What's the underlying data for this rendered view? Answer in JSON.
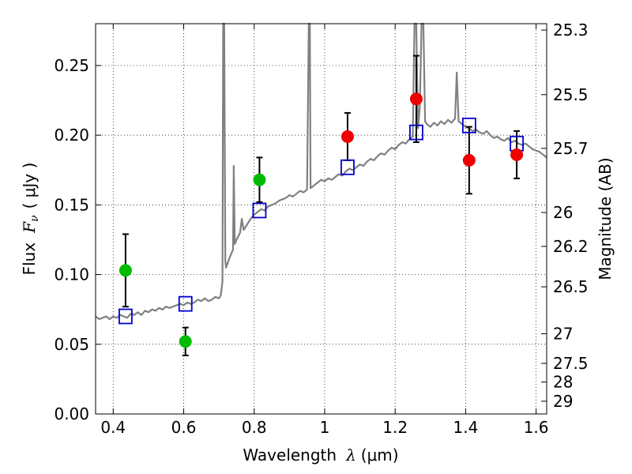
{
  "chart_data": {
    "type": "scatter",
    "xlabel": {
      "prefix": "Wavelength",
      "lambda": "λ",
      "unit": "(μm)"
    },
    "ylabel": {
      "prefix": "Flux",
      "symbol": "F",
      "subscript": "ν",
      "unit": "( μJy )"
    },
    "y2label": "Magnitude (AB)",
    "xlim": [
      0.35,
      1.63
    ],
    "ylim": [
      0.0,
      0.28
    ],
    "x_ticks": [
      {
        "value": 0.4,
        "label": "0.4"
      },
      {
        "value": 0.6,
        "label": "0.6"
      },
      {
        "value": 0.8,
        "label": "0.8"
      },
      {
        "value": 1.0,
        "label": "1"
      },
      {
        "value": 1.2,
        "label": "1.2"
      },
      {
        "value": 1.4,
        "label": "1.4"
      },
      {
        "value": 1.6,
        "label": "1.6"
      }
    ],
    "y_ticks": [
      {
        "value": 0.0,
        "label": "0.00"
      },
      {
        "value": 0.05,
        "label": "0.05"
      },
      {
        "value": 0.1,
        "label": "0.10"
      },
      {
        "value": 0.15,
        "label": "0.15"
      },
      {
        "value": 0.2,
        "label": "0.20"
      },
      {
        "value": 0.25,
        "label": "0.25"
      }
    ],
    "y2_ticks": [
      {
        "mag": 25.3,
        "label": "25.3"
      },
      {
        "mag": 25.5,
        "label": "25.5"
      },
      {
        "mag": 25.7,
        "label": "25.7"
      },
      {
        "mag": 26.0,
        "label": "26"
      },
      {
        "mag": 26.2,
        "label": "26.2"
      },
      {
        "mag": 26.5,
        "label": "26.5"
      },
      {
        "mag": 27.0,
        "label": "27"
      },
      {
        "mag": 27.5,
        "label": "27.5"
      },
      {
        "mag": 28.0,
        "label": "28"
      },
      {
        "mag": 29.0,
        "label": "29"
      }
    ],
    "grid": true,
    "series": [
      {
        "kind": "spectrum",
        "color": "#808080",
        "points": [
          [
            0.35,
            0.07
          ],
          [
            0.36,
            0.068
          ],
          [
            0.37,
            0.069
          ],
          [
            0.38,
            0.07
          ],
          [
            0.39,
            0.068
          ],
          [
            0.4,
            0.07
          ],
          [
            0.41,
            0.069
          ],
          [
            0.42,
            0.071
          ],
          [
            0.43,
            0.07
          ],
          [
            0.44,
            0.069
          ],
          [
            0.45,
            0.072
          ],
          [
            0.46,
            0.071
          ],
          [
            0.47,
            0.073
          ],
          [
            0.48,
            0.071
          ],
          [
            0.49,
            0.074
          ],
          [
            0.5,
            0.073
          ],
          [
            0.51,
            0.075
          ],
          [
            0.52,
            0.074
          ],
          [
            0.53,
            0.076
          ],
          [
            0.54,
            0.075
          ],
          [
            0.55,
            0.077
          ],
          [
            0.56,
            0.076
          ],
          [
            0.57,
            0.077
          ],
          [
            0.58,
            0.078
          ],
          [
            0.59,
            0.079
          ],
          [
            0.6,
            0.078
          ],
          [
            0.61,
            0.08
          ],
          [
            0.62,
            0.079
          ],
          [
            0.63,
            0.08
          ],
          [
            0.64,
            0.082
          ],
          [
            0.65,
            0.081
          ],
          [
            0.66,
            0.083
          ],
          [
            0.67,
            0.081
          ],
          [
            0.68,
            0.082
          ],
          [
            0.69,
            0.084
          ],
          [
            0.7,
            0.083
          ],
          [
            0.705,
            0.085
          ],
          [
            0.71,
            0.095
          ],
          [
            0.712,
            0.28
          ],
          [
            0.715,
            0.28
          ],
          [
            0.718,
            0.11
          ],
          [
            0.72,
            0.105
          ],
          [
            0.73,
            0.112
          ],
          [
            0.74,
            0.118
          ],
          [
            0.742,
            0.178
          ],
          [
            0.745,
            0.122
          ],
          [
            0.75,
            0.125
          ],
          [
            0.76,
            0.13
          ],
          [
            0.765,
            0.14
          ],
          [
            0.77,
            0.132
          ],
          [
            0.78,
            0.136
          ],
          [
            0.79,
            0.14
          ],
          [
            0.8,
            0.143
          ],
          [
            0.81,
            0.145
          ],
          [
            0.82,
            0.147
          ],
          [
            0.83,
            0.146
          ],
          [
            0.84,
            0.149
          ],
          [
            0.85,
            0.15
          ],
          [
            0.86,
            0.151
          ],
          [
            0.87,
            0.153
          ],
          [
            0.88,
            0.154
          ],
          [
            0.89,
            0.155
          ],
          [
            0.9,
            0.157
          ],
          [
            0.91,
            0.156
          ],
          [
            0.92,
            0.158
          ],
          [
            0.93,
            0.16
          ],
          [
            0.94,
            0.159
          ],
          [
            0.95,
            0.161
          ],
          [
            0.955,
            0.28
          ],
          [
            0.958,
            0.28
          ],
          [
            0.96,
            0.162
          ],
          [
            0.97,
            0.164
          ],
          [
            0.98,
            0.166
          ],
          [
            0.99,
            0.168
          ],
          [
            1.0,
            0.167
          ],
          [
            1.01,
            0.169
          ],
          [
            1.02,
            0.168
          ],
          [
            1.03,
            0.17
          ],
          [
            1.04,
            0.172
          ],
          [
            1.05,
            0.171
          ],
          [
            1.06,
            0.174
          ],
          [
            1.07,
            0.176
          ],
          [
            1.08,
            0.175
          ],
          [
            1.09,
            0.177
          ],
          [
            1.1,
            0.179
          ],
          [
            1.11,
            0.178
          ],
          [
            1.12,
            0.181
          ],
          [
            1.13,
            0.183
          ],
          [
            1.14,
            0.182
          ],
          [
            1.15,
            0.185
          ],
          [
            1.16,
            0.187
          ],
          [
            1.17,
            0.186
          ],
          [
            1.18,
            0.189
          ],
          [
            1.19,
            0.191
          ],
          [
            1.2,
            0.19
          ],
          [
            1.21,
            0.193
          ],
          [
            1.22,
            0.195
          ],
          [
            1.23,
            0.194
          ],
          [
            1.24,
            0.197
          ],
          [
            1.25,
            0.199
          ],
          [
            1.255,
            0.28
          ],
          [
            1.26,
            0.28
          ],
          [
            1.265,
            0.205
          ],
          [
            1.27,
            0.22
          ],
          [
            1.275,
            0.28
          ],
          [
            1.28,
            0.28
          ],
          [
            1.285,
            0.21
          ],
          [
            1.29,
            0.208
          ],
          [
            1.3,
            0.206
          ],
          [
            1.31,
            0.209
          ],
          [
            1.32,
            0.207
          ],
          [
            1.33,
            0.21
          ],
          [
            1.34,
            0.208
          ],
          [
            1.35,
            0.211
          ],
          [
            1.36,
            0.209
          ],
          [
            1.37,
            0.212
          ],
          [
            1.375,
            0.245
          ],
          [
            1.38,
            0.21
          ],
          [
            1.39,
            0.208
          ],
          [
            1.4,
            0.206
          ],
          [
            1.41,
            0.205
          ],
          [
            1.42,
            0.203
          ],
          [
            1.43,
            0.204
          ],
          [
            1.44,
            0.202
          ],
          [
            1.45,
            0.201
          ],
          [
            1.46,
            0.203
          ],
          [
            1.47,
            0.2
          ],
          [
            1.48,
            0.198
          ],
          [
            1.49,
            0.199
          ],
          [
            1.5,
            0.197
          ],
          [
            1.51,
            0.196
          ],
          [
            1.52,
            0.198
          ],
          [
            1.53,
            0.195
          ],
          [
            1.54,
            0.196
          ],
          [
            1.55,
            0.194
          ],
          [
            1.56,
            0.193
          ],
          [
            1.57,
            0.194
          ],
          [
            1.58,
            0.192
          ],
          [
            1.59,
            0.19
          ],
          [
            1.6,
            0.189
          ],
          [
            1.61,
            0.188
          ],
          [
            1.62,
            0.186
          ],
          [
            1.63,
            0.184
          ]
        ]
      },
      {
        "kind": "model-squares",
        "color": "#0000cc",
        "points": [
          {
            "x": 0.435,
            "y": 0.07
          },
          {
            "x": 0.605,
            "y": 0.079
          },
          {
            "x": 0.815,
            "y": 0.146
          },
          {
            "x": 1.065,
            "y": 0.177
          },
          {
            "x": 1.26,
            "y": 0.202
          },
          {
            "x": 1.41,
            "y": 0.207
          },
          {
            "x": 1.545,
            "y": 0.194
          }
        ]
      },
      {
        "kind": "observed-green",
        "color": "#00bb00",
        "points": [
          {
            "x": 0.435,
            "y": 0.103,
            "err": 0.026
          },
          {
            "x": 0.605,
            "y": 0.052,
            "err": 0.01
          },
          {
            "x": 0.815,
            "y": 0.168,
            "err": 0.016
          }
        ]
      },
      {
        "kind": "observed-red",
        "color": "#ee0000",
        "points": [
          {
            "x": 1.065,
            "y": 0.199,
            "err": 0.017
          },
          {
            "x": 1.26,
            "y": 0.226,
            "err": 0.031
          },
          {
            "x": 1.41,
            "y": 0.182,
            "err": 0.024
          },
          {
            "x": 1.545,
            "y": 0.186,
            "err": 0.017
          }
        ]
      }
    ]
  }
}
